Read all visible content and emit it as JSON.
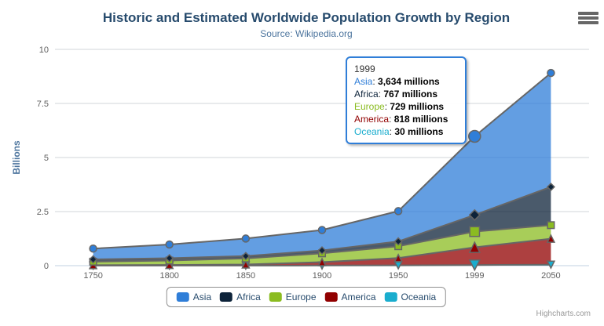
{
  "credits": "Highcharts.com",
  "tooltip": {
    "header": "1999",
    "rows": [
      {
        "name": "Asia",
        "value": "3,634 millions",
        "color": "#2f7ed8"
      },
      {
        "name": "Africa",
        "value": "767 millions",
        "color": "#0d233a"
      },
      {
        "name": "Europe",
        "value": "729 millions",
        "color": "#8bbc21"
      },
      {
        "name": "America",
        "value": "818 millions",
        "color": "#910000"
      },
      {
        "name": "Oceania",
        "value": "30 millions",
        "color": "#1aadce"
      }
    ]
  },
  "style_colors": {
    "title": "#274b6d",
    "subtitle": "#4d759e",
    "axis_labels": "#606060",
    "axis_title": "#4d759e",
    "grid": "#d0d4d9",
    "x_axis_line": "#c0d0e0",
    "area_edge": "#666666",
    "tooltip_border": "#2f7ed8",
    "legend_text": "#274b6d",
    "legend_border": "#909090",
    "credits": "#999999"
  },
  "chart_data": {
    "type": "area",
    "stacking": "normal",
    "title": "Historic and Estimated Worldwide Population Growth by Region",
    "subtitle": "Source: Wikipedia.org",
    "categories": [
      "1750",
      "1800",
      "1850",
      "1900",
      "1950",
      "1999",
      "2050"
    ],
    "xlabel": "",
    "ylabel": "Billions",
    "ylim": [
      0,
      10
    ],
    "yticks": [
      "0",
      "2.5",
      "5",
      "7.5",
      "10"
    ],
    "values_unit": "millions",
    "grid": "on",
    "legend_position": "bottom",
    "hover_index": 5,
    "fill_opacity": 0.75,
    "series": [
      {
        "name": "Asia",
        "color": "#2f7ed8",
        "marker": "circle",
        "values": [
          502,
          635,
          809,
          947,
          1402,
          3634,
          5268
        ]
      },
      {
        "name": "Africa",
        "color": "#0d233a",
        "marker": "diamond",
        "values": [
          106,
          107,
          111,
          133,
          221,
          767,
          1766
        ]
      },
      {
        "name": "Europe",
        "color": "#8bbc21",
        "marker": "square",
        "values": [
          163,
          203,
          276,
          408,
          547,
          729,
          628
        ]
      },
      {
        "name": "America",
        "color": "#910000",
        "marker": "triangle",
        "values": [
          18,
          31,
          54,
          156,
          339,
          818,
          1201
        ]
      },
      {
        "name": "Oceania",
        "color": "#1aadce",
        "marker": "triangle-down",
        "values": [
          2,
          2,
          2,
          6,
          13,
          30,
          46
        ]
      }
    ]
  }
}
